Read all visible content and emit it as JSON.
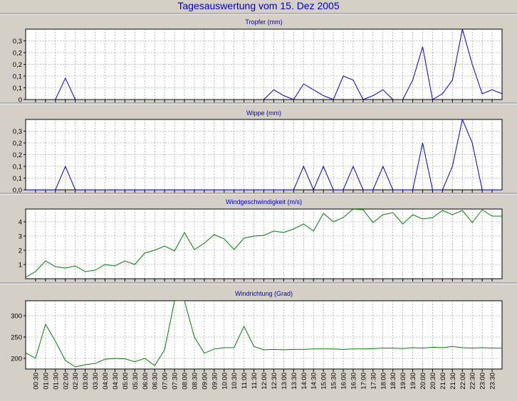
{
  "page_title": "Tagesauswertung vom 15. Dez 2005",
  "colors": {
    "background": "#d4d0c8",
    "plot_bg": "#ffffff",
    "grid": "#888888",
    "title": "#0000c8",
    "blue": "#0000cc",
    "green": "#008000",
    "axis": "#000000"
  },
  "x_labels": [
    "00:30",
    "01:00",
    "01:30",
    "02:00",
    "02:30",
    "03:00",
    "03:30",
    "04:00",
    "04:30",
    "05:00",
    "05:30",
    "06:00",
    "06:30",
    "07:00",
    "07:30",
    "08:00",
    "08:30",
    "09:00",
    "09:30",
    "10:00",
    "10:30",
    "11:00",
    "11:30",
    "12:00",
    "12:30",
    "13:00",
    "13:30",
    "14:00",
    "14:30",
    "15:00",
    "15:30",
    "16:00",
    "16:30",
    "17:00",
    "17:30",
    "18:00",
    "18:30",
    "19:00",
    "19:30",
    "20:00",
    "20:30",
    "21:00",
    "21:30",
    "22:00",
    "22:30",
    "23:00",
    "23:30"
  ],
  "chart_data": [
    {
      "type": "line",
      "title": "Tropfer (mm)",
      "color": "blue",
      "ylim": [
        0,
        0.36
      ],
      "yticks": [
        0,
        0.06,
        0.12,
        0.18,
        0.24,
        0.3
      ],
      "ytick_labels": [
        "0",
        "0,1",
        "0,1",
        "0,2",
        "0,2",
        "0,3"
      ],
      "x": [
        "00:00",
        "00:30",
        "01:00",
        "01:30",
        "02:00",
        "02:30",
        "03:00",
        "03:30",
        "04:00",
        "04:30",
        "05:00",
        "05:30",
        "06:00",
        "06:30",
        "07:00",
        "07:30",
        "08:00",
        "08:30",
        "09:00",
        "09:30",
        "10:00",
        "10:30",
        "11:00",
        "11:30",
        "12:00",
        "12:30",
        "13:00",
        "13:30",
        "14:00",
        "14:30",
        "15:00",
        "15:30",
        "16:00",
        "16:30",
        "17:00",
        "17:30",
        "18:00",
        "18:30",
        "19:00",
        "19:30",
        "20:00",
        "20:30",
        "21:00",
        "21:30",
        "22:00",
        "22:30",
        "23:00",
        "23:30",
        "24:00"
      ],
      "values": [
        0,
        0,
        0,
        0,
        0.11,
        0,
        0,
        0,
        0,
        0,
        0,
        0,
        0,
        0,
        0,
        0,
        0,
        0,
        0,
        0,
        0,
        0,
        0,
        0,
        0,
        0.05,
        0.02,
        0,
        0.08,
        0.05,
        0.02,
        0,
        0.12,
        0.1,
        0,
        0.02,
        0.05,
        0,
        0,
        0.1,
        0.27,
        0,
        0.03,
        0.1,
        0.36,
        0.18,
        0.03,
        0.05,
        0.03
      ]
    },
    {
      "type": "line",
      "title": "Wippe (mm)",
      "color": "blue",
      "ylim": [
        0,
        0.36
      ],
      "yticks": [
        0,
        0.06,
        0.12,
        0.18,
        0.24,
        0.3
      ],
      "ytick_labels": [
        "0,0",
        "0,1",
        "0,1",
        "0,2",
        "0,2",
        "0,3"
      ],
      "x": [
        "00:00",
        "00:30",
        "01:00",
        "01:30",
        "02:00",
        "02:30",
        "03:00",
        "03:30",
        "04:00",
        "04:30",
        "05:00",
        "05:30",
        "06:00",
        "06:30",
        "07:00",
        "07:30",
        "08:00",
        "08:30",
        "09:00",
        "09:30",
        "10:00",
        "10:30",
        "11:00",
        "11:30",
        "12:00",
        "12:30",
        "13:00",
        "13:30",
        "14:00",
        "14:30",
        "15:00",
        "15:30",
        "16:00",
        "16:30",
        "17:00",
        "17:30",
        "18:00",
        "18:30",
        "19:00",
        "19:30",
        "20:00",
        "20:30",
        "21:00",
        "21:30",
        "22:00",
        "22:30",
        "23:00",
        "23:30",
        "24:00"
      ],
      "values": [
        0,
        0,
        0,
        0,
        0.12,
        0,
        0,
        0,
        0,
        0,
        0,
        0,
        0,
        0,
        0,
        0,
        0,
        0,
        0,
        0,
        0,
        0,
        0,
        0,
        0,
        0,
        0,
        0,
        0.12,
        0,
        0.12,
        0,
        0,
        0.12,
        0,
        0,
        0.12,
        0,
        0,
        0,
        0.24,
        0,
        0,
        0.12,
        0.36,
        0.24,
        0,
        0,
        0
      ]
    },
    {
      "type": "line",
      "title": "Windgeschwindigkeit (m/s)",
      "color": "green",
      "ylim": [
        0,
        4.9
      ],
      "yticks": [
        1,
        2,
        3,
        4
      ],
      "ytick_labels": [
        "1",
        "2",
        "3",
        "4"
      ],
      "x": [
        "00:00",
        "00:30",
        "01:00",
        "01:30",
        "02:00",
        "02:30",
        "03:00",
        "03:30",
        "04:00",
        "04:30",
        "05:00",
        "05:30",
        "06:00",
        "06:30",
        "07:00",
        "07:30",
        "08:00",
        "08:30",
        "09:00",
        "09:30",
        "10:00",
        "10:30",
        "11:00",
        "11:30",
        "12:00",
        "12:30",
        "13:00",
        "13:30",
        "14:00",
        "14:30",
        "15:00",
        "15:30",
        "16:00",
        "16:30",
        "17:00",
        "17:30",
        "18:00",
        "18:30",
        "19:00",
        "19:30",
        "20:00",
        "20:30",
        "21:00",
        "21:30",
        "22:00",
        "22:30",
        "23:00",
        "23:30",
        "24:00"
      ],
      "values": [
        0.1,
        0.5,
        1.25,
        0.85,
        0.75,
        0.9,
        0.5,
        0.6,
        1.0,
        0.9,
        1.25,
        1.0,
        1.8,
        2.0,
        2.3,
        1.95,
        3.25,
        2.05,
        2.5,
        3.1,
        2.8,
        2.05,
        2.85,
        3.0,
        3.05,
        3.35,
        3.25,
        3.5,
        3.85,
        3.35,
        4.6,
        4.0,
        4.3,
        4.9,
        4.85,
        3.95,
        4.5,
        4.65,
        3.85,
        4.5,
        4.2,
        4.3,
        4.8,
        4.5,
        4.8,
        3.95,
        4.85,
        4.4,
        4.4
      ]
    },
    {
      "type": "line",
      "title": "Windrichtung (Grad)",
      "color": "green",
      "ylim": [
        175,
        335
      ],
      "yticks": [
        200,
        250,
        300
      ],
      "ytick_labels": [
        "200",
        "250",
        "300"
      ],
      "x": [
        "00:00",
        "00:30",
        "01:00",
        "01:30",
        "02:00",
        "02:30",
        "03:00",
        "03:30",
        "04:00",
        "04:30",
        "05:00",
        "05:30",
        "06:00",
        "06:30",
        "07:00",
        "07:30",
        "08:00",
        "08:30",
        "09:00",
        "09:30",
        "10:00",
        "10:30",
        "11:00",
        "11:30",
        "12:00",
        "12:30",
        "13:00",
        "13:30",
        "14:00",
        "14:30",
        "15:00",
        "15:30",
        "16:00",
        "16:30",
        "17:00",
        "17:30",
        "18:00",
        "18:30",
        "19:00",
        "19:30",
        "20:00",
        "20:30",
        "21:00",
        "21:30",
        "22:00",
        "22:30",
        "23:00",
        "23:30",
        "24:00"
      ],
      "values": [
        213,
        200,
        280,
        240,
        195,
        180,
        185,
        188,
        198,
        200,
        199,
        192,
        200,
        183,
        220,
        335,
        335,
        250,
        212,
        222,
        225,
        225,
        275,
        228,
        220,
        221,
        220,
        221,
        221,
        222,
        222,
        222,
        221,
        222,
        222,
        223,
        224,
        224,
        223,
        225,
        224,
        226,
        225,
        228,
        225,
        224,
        225,
        224,
        224
      ]
    }
  ]
}
